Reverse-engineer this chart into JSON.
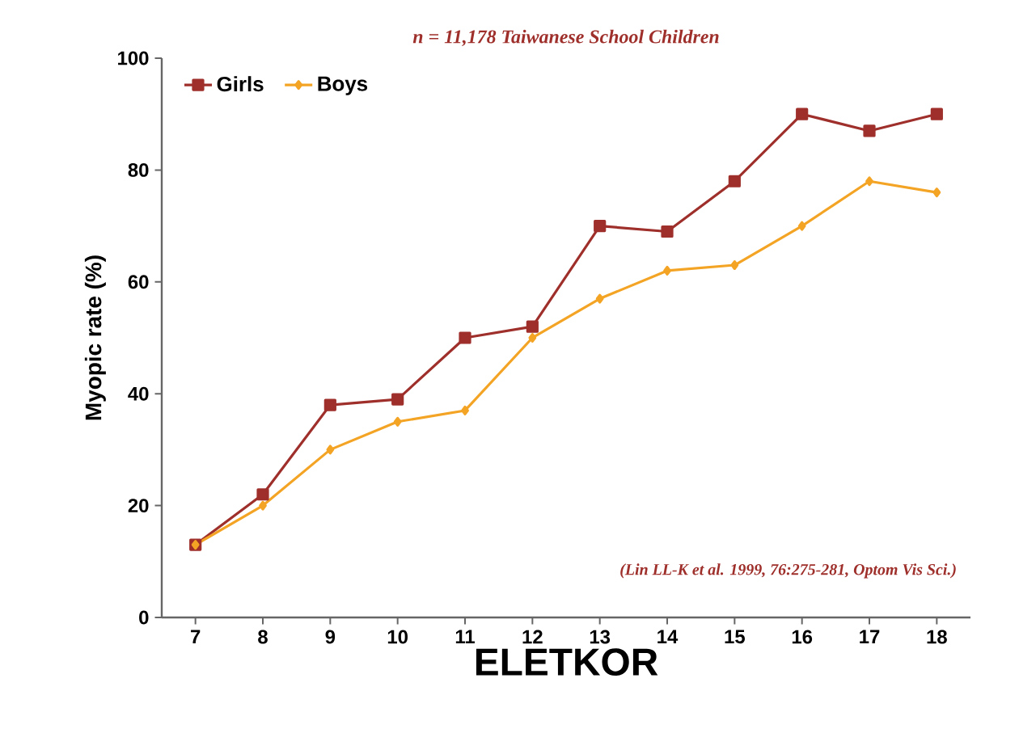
{
  "chart_data": {
    "type": "line",
    "title": "n = 11,178    Taiwanese School Children",
    "xlabel": "ELETKOR",
    "ylabel": "Myopic rate (%)",
    "categories": [
      "7",
      "8",
      "9",
      "10",
      "11",
      "12",
      "13",
      "14",
      "15",
      "16",
      "17",
      "18"
    ],
    "series": [
      {
        "name": "Girls",
        "color": "#9e2f2b",
        "marker": "square",
        "values": [
          13,
          22,
          38,
          39,
          50,
          52,
          70,
          69,
          78,
          90,
          87,
          90
        ]
      },
      {
        "name": "Boys",
        "color": "#f4a424",
        "marker": "diamond",
        "values": [
          13,
          20,
          30,
          35,
          37,
          50,
          57,
          62,
          63,
          70,
          78,
          76
        ]
      }
    ],
    "ylim": [
      0,
      100
    ],
    "yticks": [
      0,
      20,
      40,
      60,
      80,
      100
    ],
    "grid": false,
    "legend": "top left",
    "annotations": [
      "(Lin LL-K et al. 1999, 76:275-281, Optom Vis Sci.)"
    ]
  }
}
